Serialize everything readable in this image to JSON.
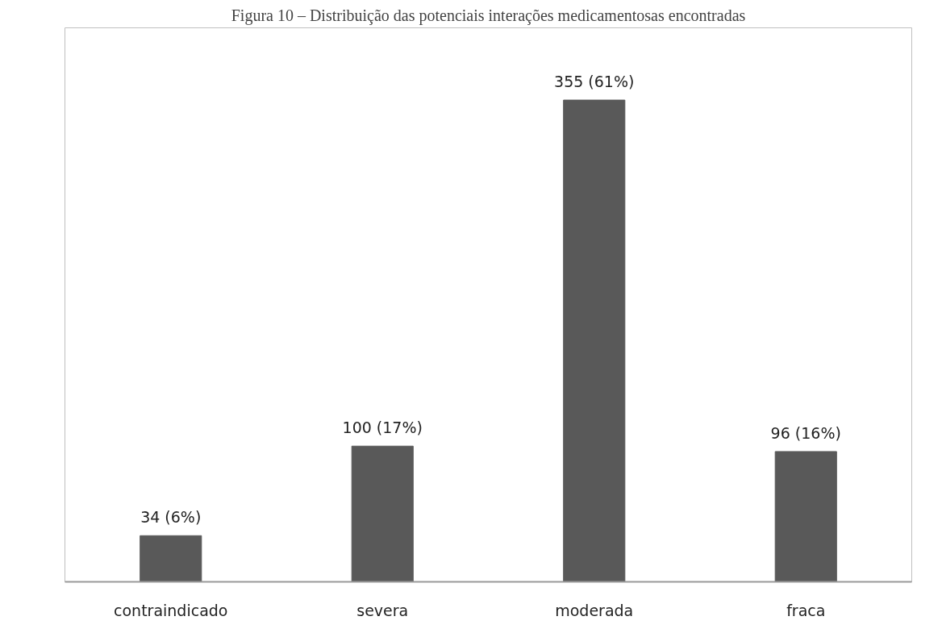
{
  "chart_data": {
    "type": "bar",
    "title": "Figura 10 – Distribuição das potenciais interações medicamentosas encontradas",
    "categories": [
      "contraindicado",
      "severa",
      "moderada",
      "fraca"
    ],
    "values": [
      34,
      100,
      355,
      96
    ],
    "color": "#595959",
    "value_labels": [
      "34 (6%)",
      "100 (17%)",
      "355 (61%)",
      "96 (16%)"
    ],
    "grid": false
  }
}
